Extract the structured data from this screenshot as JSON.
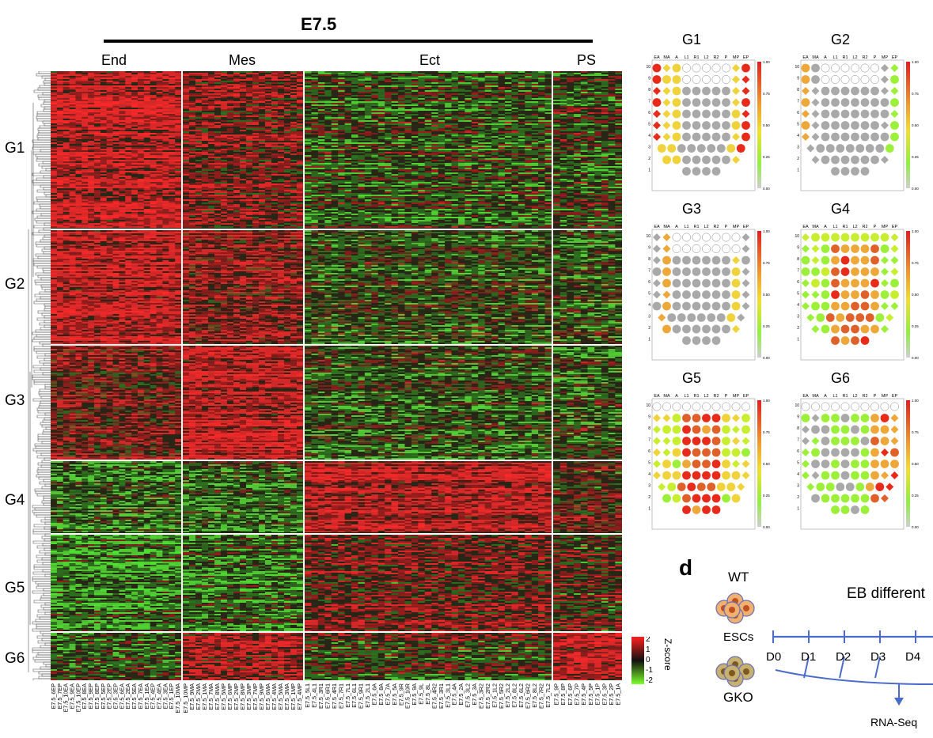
{
  "stage_title": "E7.5",
  "columns": [
    {
      "label": "End"
    },
    {
      "label": "Mes"
    },
    {
      "label": "Ect"
    },
    {
      "label": "PS"
    }
  ],
  "groups": [
    "G1",
    "G2",
    "G3",
    "G4",
    "G5",
    "G6"
  ],
  "colors": {
    "high": "#ff3030",
    "mid": "#1a1a1a",
    "low": "#7cff2a",
    "neutral": "#a9a9a9"
  },
  "color_key": {
    "title": "Z-score",
    "ticks": [
      "2",
      "1",
      "0",
      "-1",
      "-2"
    ]
  },
  "sample_labels": {
    "End": [
      "E7.5_6EP",
      "E7.5_7EP",
      "E7.5_10EA",
      "E7.5_9EA",
      "E7.5_10EP",
      "E7.5_8EA",
      "E7.5_9EP",
      "E7.5_8EP",
      "E7.5_5EP",
      "E7.5_2EP",
      "E7.5_3EP",
      "E7.5_6EA",
      "E7.5_2EA",
      "E7.5_5EA",
      "E7.5_7EA",
      "E7.5_1EA",
      "E7.5_4EP",
      "E7.5_4EA",
      "E7.5_3EA",
      "E7.5_1EP",
      "E7.5_10MA"
    ],
    "Mes": [
      "E7.5_10MP",
      "E7.5_9MA",
      "E7.5_2MA",
      "E7.5_1MA",
      "E7.5_7MA",
      "E7.5_8MA",
      "E7.5_5MP",
      "E7.5_6MP",
      "E7.5_2MP",
      "E7.5_8MP",
      "E7.5_3MP",
      "E7.5_7MP",
      "E7.5_9MP",
      "E7.5_6MA",
      "E7.5_4MA",
      "E7.5_5MA",
      "E7.5_3MA",
      "E7.5_1MP",
      "E7.5_4MP"
    ],
    "Ect": [
      "E7.5_5L1",
      "E7.5_4L1",
      "E7.5_3R1",
      "E7.5_6R1",
      "E7.5_4R1",
      "E7.5_7R1",
      "E7.5_7L1",
      "E7.5_6L1",
      "E7.5_9R1",
      "E7.5_2L1",
      "E7.5_6A",
      "E7.5_8A",
      "E7.5_7A",
      "E7.5_5A",
      "E7.5_9R",
      "E7.5_10R",
      "E7.5_9A",
      "E7.5_9L",
      "E7.5_8L",
      "E7.5_4R2",
      "E7.5_3R1",
      "E7.5_3L1",
      "E7.5_4A",
      "E7.5_2A",
      "E7.5_3L2",
      "E7.5_3A",
      "E7.5_3R2",
      "E7.5_2R2",
      "E7.5_1L2",
      "E7.5_5R2",
      "E7.5_2L2",
      "E7.5_8L2",
      "E7.5_6L2",
      "E7.5_6R2",
      "E7.5_8L2",
      "E7.5_7R2",
      "E7.5_7L2"
    ],
    "PS": [
      "E7.5_9P",
      "E7.5_8P",
      "E7.5_6P",
      "E7.5_7P",
      "E7.5_4P",
      "E7.5_5P",
      "E7.5_1P",
      "E7.5_3P",
      "E7.5_2P",
      "E7.5_1A"
    ]
  },
  "cornplots": [
    {
      "title": "G1",
      "cols": [
        "EA",
        "MA",
        "A",
        "L1",
        "R1",
        "L2",
        "R2",
        "P",
        "MP",
        "EP"
      ],
      "rows": [
        "10",
        "9",
        "8",
        "7",
        "6",
        "5",
        "4",
        "3",
        "2",
        "1"
      ],
      "scale": [
        "1.00",
        "0.75",
        "0.50",
        "0.25",
        "0.00"
      ]
    },
    {
      "title": "G2",
      "cols": [
        "EA",
        "MA",
        "A",
        "L1",
        "R1",
        "L2",
        "R2",
        "P",
        "MP",
        "EP"
      ],
      "rows": [
        "10",
        "9",
        "8",
        "7",
        "6",
        "5",
        "4",
        "3",
        "2",
        "1"
      ],
      "scale": [
        "1.00",
        "0.75",
        "0.50",
        "0.25",
        "0.00"
      ]
    },
    {
      "title": "G3",
      "cols": [
        "EA",
        "MA",
        "A",
        "L1",
        "R1",
        "L2",
        "R2",
        "P",
        "MP",
        "EP"
      ],
      "rows": [
        "10",
        "9",
        "8",
        "7",
        "6",
        "5",
        "4",
        "3",
        "2",
        "1"
      ],
      "scale": [
        "1.00",
        "0.75",
        "0.50",
        "0.25",
        "0.00"
      ]
    },
    {
      "title": "G4",
      "cols": [
        "EA",
        "MA",
        "A",
        "L1",
        "R1",
        "L2",
        "R2",
        "P",
        "MP",
        "EP"
      ],
      "rows": [
        "10",
        "9",
        "8",
        "7",
        "6",
        "5",
        "4",
        "3",
        "2",
        "1"
      ],
      "scale": [
        "1.00",
        "0.75",
        "0.50",
        "0.25",
        "0.00"
      ]
    },
    {
      "title": "G5",
      "cols": [
        "EA",
        "MA",
        "A",
        "L1",
        "R1",
        "L2",
        "R2",
        "P",
        "MP",
        "EP"
      ],
      "rows": [
        "10",
        "9",
        "8",
        "7",
        "6",
        "5",
        "4",
        "3",
        "2",
        "1"
      ],
      "scale": [
        "1.00",
        "0.75",
        "0.50",
        "0.25",
        "0.00"
      ]
    },
    {
      "title": "G6",
      "cols": [
        "EA",
        "MA",
        "A",
        "L1",
        "R1",
        "L2",
        "R2",
        "P",
        "MP",
        "EP"
      ],
      "rows": [
        "10",
        "9",
        "8",
        "7",
        "6",
        "5",
        "4",
        "3",
        "2",
        "1"
      ],
      "scale": [
        "1.00",
        "0.75",
        "0.50",
        "0.25",
        "0.00"
      ]
    }
  ],
  "panel_d": {
    "letter": "d",
    "wt": "WT",
    "gko": "GKO",
    "escs": "ESCs",
    "title": "EB different",
    "days": [
      "D0",
      "D1",
      "D2",
      "D3",
      "D4"
    ],
    "assay": "RNA-Seq"
  }
}
